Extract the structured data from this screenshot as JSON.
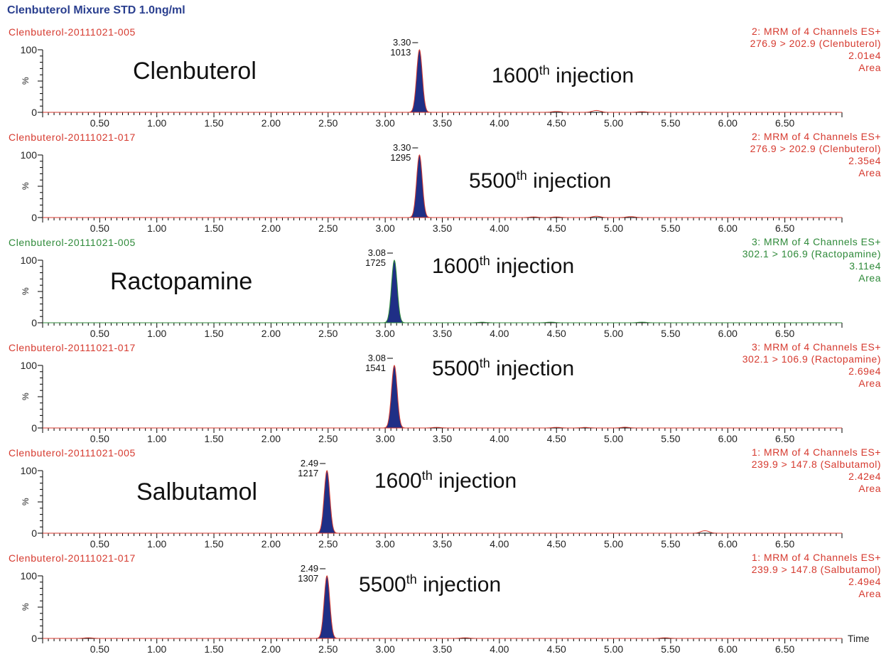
{
  "title": "Clenbuterol Mixure STD 1.0ng/ml",
  "x_axis_label": "Time",
  "colors": {
    "red": "#d63a2f",
    "green": "#2f8a3a",
    "peak_fill": "#1f2f86",
    "title": "#2a3f8f"
  },
  "chart_data": [
    {
      "type": "line",
      "sample": "Clenbuterol-20111021-005",
      "header_color": "red",
      "compound_label": "Clenbuterol",
      "injection_num": "1600",
      "injection_sup": "th",
      "injection_text": "injection",
      "info": [
        "2: MRM of 4 Channels ES+",
        "276.9 > 202.9 (Clenbuterol)",
        "2.01e4",
        "Area"
      ],
      "peak_rt": "3.30",
      "peak_area": "1013",
      "peak_x": 3.3,
      "ylabels": [
        "100",
        "%",
        "0"
      ],
      "ylim": [
        0,
        100
      ],
      "xlim": [
        0,
        7.0
      ],
      "xticks": [
        "0.50",
        "1.00",
        "1.50",
        "2.00",
        "2.50",
        "3.00",
        "3.50",
        "4.00",
        "4.50",
        "5.00",
        "5.50",
        "6.00",
        "6.50"
      ],
      "bumps": [
        [
          4.85,
          3
        ],
        [
          4.5,
          1.5
        ],
        [
          5.25,
          1
        ]
      ]
    },
    {
      "type": "line",
      "sample": "Clenbuterol-20111021-017",
      "header_color": "red",
      "compound_label": "",
      "injection_num": "5500",
      "injection_sup": "th",
      "injection_text": "injection",
      "info": [
        "2: MRM of 4 Channels ES+",
        "276.9 > 202.9 (Clenbuterol)",
        "2.35e4",
        "Area"
      ],
      "peak_rt": "3.30",
      "peak_area": "1295",
      "peak_x": 3.3,
      "ylabels": [
        "100",
        "%",
        "0"
      ],
      "ylim": [
        0,
        100
      ],
      "xlim": [
        0,
        7.0
      ],
      "xticks": [
        "0.50",
        "1.00",
        "1.50",
        "2.00",
        "2.50",
        "3.00",
        "3.50",
        "4.00",
        "4.50",
        "5.00",
        "5.50",
        "6.00",
        "6.50"
      ],
      "bumps": [
        [
          4.85,
          2
        ],
        [
          5.15,
          1.5
        ],
        [
          4.5,
          1
        ],
        [
          4.3,
          1
        ]
      ]
    },
    {
      "type": "line",
      "sample": "Clenbuterol-20111021-005",
      "header_color": "green",
      "compound_label": "Ractopamine",
      "injection_num": "1600",
      "injection_sup": "th",
      "injection_text": "injection",
      "info": [
        "3: MRM of 4 Channels ES+",
        "302.1 > 106.9 (Ractopamine)",
        "3.11e4",
        "Area"
      ],
      "peak_rt": "3.08",
      "peak_area": "1725",
      "peak_x": 3.08,
      "ylabels": [
        "100",
        "%",
        "0"
      ],
      "ylim": [
        0,
        100
      ],
      "xlim": [
        0,
        7.0
      ],
      "xticks": [
        "0.50",
        "1.00",
        "1.50",
        "2.00",
        "2.50",
        "3.00",
        "3.50",
        "4.00",
        "4.50",
        "5.00",
        "5.50",
        "6.00",
        "6.50"
      ],
      "bumps": [
        [
          4.45,
          1
        ],
        [
          5.25,
          1
        ],
        [
          3.85,
          0.8
        ]
      ]
    },
    {
      "type": "line",
      "sample": "Clenbuterol-20111021-017",
      "header_color": "red",
      "compound_label": "",
      "injection_num": "5500",
      "injection_sup": "th",
      "injection_text": "injection",
      "info": [
        "3: MRM of 4 Channels ES+",
        "302.1 > 106.9 (Ractopamine)",
        "2.69e4",
        "Area"
      ],
      "peak_rt": "3.08",
      "peak_area": "1541",
      "peak_x": 3.08,
      "ylabels": [
        "100",
        "%",
        "0"
      ],
      "ylim": [
        0,
        100
      ],
      "xlim": [
        0,
        7.0
      ],
      "xticks": [
        "0.50",
        "1.00",
        "1.50",
        "2.00",
        "2.50",
        "3.00",
        "3.50",
        "4.00",
        "4.50",
        "5.00",
        "5.50",
        "6.00",
        "6.50"
      ],
      "bumps": [
        [
          3.45,
          1
        ],
        [
          4.5,
          1
        ],
        [
          4.75,
          0.8
        ],
        [
          5.1,
          1.2
        ]
      ]
    },
    {
      "type": "line",
      "sample": "Clenbuterol-20111021-005",
      "header_color": "red",
      "compound_label": "Salbutamol",
      "injection_num": "1600",
      "injection_sup": "th",
      "injection_text": "injection",
      "info": [
        "1: MRM of 4 Channels ES+",
        "239.9 > 147.8 (Salbutamol)",
        "2.42e4",
        "Area"
      ],
      "peak_rt": "2.49",
      "peak_area": "1217",
      "peak_x": 2.49,
      "ylabels": [
        "100",
        "%",
        "0"
      ],
      "ylim": [
        0,
        100
      ],
      "xlim": [
        0,
        7.0
      ],
      "xticks": [
        "0.50",
        "1.00",
        "1.50",
        "2.00",
        "2.50",
        "3.00",
        "3.50",
        "4.00",
        "4.50",
        "5.00",
        "5.50",
        "6.00",
        "6.50"
      ],
      "bumps": [
        [
          5.8,
          4
        ]
      ]
    },
    {
      "type": "line",
      "sample": "Clenbuterol-20111021-017",
      "header_color": "red",
      "compound_label": "",
      "injection_num": "5500",
      "injection_sup": "th",
      "injection_text": "injection",
      "info": [
        "1: MRM of 4 Channels ES+",
        "239.9 > 147.8 (Salbutamol)",
        "2.49e4",
        "Area"
      ],
      "peak_rt": "2.49",
      "peak_area": "1307",
      "peak_x": 2.49,
      "ylabels": [
        "100",
        "%",
        "0"
      ],
      "ylim": [
        0,
        100
      ],
      "xlim": [
        0,
        7.0
      ],
      "xticks": [
        "0.50",
        "1.00",
        "1.50",
        "2.00",
        "2.50",
        "3.00",
        "3.50",
        "4.00",
        "4.50",
        "5.00",
        "5.50",
        "6.00",
        "6.50"
      ],
      "bumps": [
        [
          0.4,
          1
        ],
        [
          3.7,
          1
        ],
        [
          5.45,
          1
        ]
      ]
    }
  ]
}
